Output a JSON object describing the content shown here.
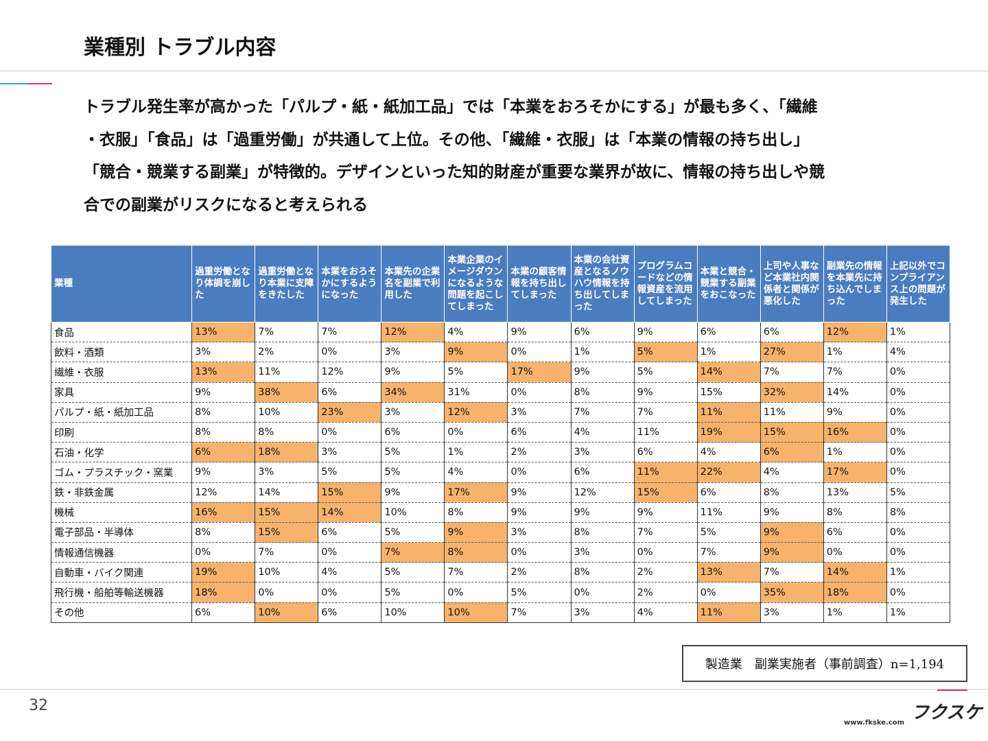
{
  "header": {
    "title": "業種別 トラブル内容"
  },
  "description": {
    "lines": [
      "トラブル発生率が高かった「パルプ・紙・紙加工品」では「本業をおろそかにする」が最も多く、「繊維",
      "・衣服」「食品」は「過重労働」が共通して上位。その他、「繊維・衣服」は「本業の情報の持ち出し」",
      "「競合・競業する副業」が特徴的。デザインといった知的財産が重要な業界が故に、情報の持ち出しや競",
      "合での副業がリスクになると考えられる"
    ]
  },
  "table": {
    "header_color": "#4a7cc0",
    "highlight_color": "#f7b36b",
    "columns": [
      "業種",
      "過重労働となり体調を崩した",
      "過重労働となり本業に支障をきたした",
      "本業をおろそかにするようになった",
      "本業先の企業名を副業で利用した",
      "本業企業のイメージダウンになるような問題を起こしてしまった",
      "本業の顧客情報を持ち出してしまった",
      "本業の会社資産となるノウハウ情報を持ち出してしまった",
      "プログラムコードなどの情報資産を流用してしまった",
      "本業と競合・競業する副業をおこなった",
      "上司や人事など本業社内関係者と関係が悪化した",
      "副業先の情報を本業先に持ち込んでしまった",
      "上記以外でコンプライアンス上の問題が発生した"
    ],
    "rows": [
      {
        "cells": [
          "食品",
          "13%",
          "7%",
          "7%",
          "12%",
          "4%",
          "9%",
          "6%",
          "9%",
          "6%",
          "6%",
          "12%",
          "1%"
        ],
        "highlight": [
          1,
          4,
          11
        ]
      },
      {
        "cells": [
          "飲料・酒類",
          "3%",
          "2%",
          "0%",
          "3%",
          "9%",
          "0%",
          "1%",
          "5%",
          "1%",
          "27%",
          "1%",
          "4%"
        ],
        "highlight": [
          5,
          8,
          10
        ]
      },
      {
        "cells": [
          "繊維・衣服",
          "13%",
          "11%",
          "12%",
          "9%",
          "5%",
          "17%",
          "9%",
          "5%",
          "14%",
          "7%",
          "7%",
          "0%"
        ],
        "highlight": [
          1,
          6,
          9
        ]
      },
      {
        "cells": [
          "家具",
          "9%",
          "38%",
          "6%",
          "34%",
          "31%",
          "0%",
          "8%",
          "9%",
          "15%",
          "32%",
          "14%",
          "0%"
        ],
        "highlight": [
          2,
          4,
          10
        ]
      },
      {
        "cells": [
          "パルプ・紙・紙加工品",
          "8%",
          "10%",
          "23%",
          "3%",
          "12%",
          "3%",
          "7%",
          "7%",
          "11%",
          "11%",
          "9%",
          "0%"
        ],
        "highlight": [
          3,
          5,
          9
        ]
      },
      {
        "cells": [
          "印刷",
          "8%",
          "8%",
          "0%",
          "6%",
          "0%",
          "6%",
          "4%",
          "11%",
          "19%",
          "15%",
          "16%",
          "0%"
        ],
        "highlight": [
          9,
          10,
          11
        ]
      },
      {
        "cells": [
          "石油・化学",
          "6%",
          "18%",
          "3%",
          "5%",
          "1%",
          "2%",
          "3%",
          "6%",
          "4%",
          "6%",
          "1%",
          "0%"
        ],
        "highlight": [
          1,
          2,
          10
        ]
      },
      {
        "cells": [
          "ゴム・プラスチック・窯業",
          "9%",
          "3%",
          "5%",
          "5%",
          "4%",
          "0%",
          "6%",
          "11%",
          "22%",
          "4%",
          "17%",
          "0%"
        ],
        "highlight": [
          8,
          9,
          11
        ]
      },
      {
        "cells": [
          "鉄・非鉄金属",
          "12%",
          "14%",
          "15%",
          "9%",
          "17%",
          "9%",
          "12%",
          "15%",
          "6%",
          "8%",
          "13%",
          "5%"
        ],
        "highlight": [
          3,
          5,
          8
        ]
      },
      {
        "cells": [
          "機械",
          "16%",
          "15%",
          "14%",
          "10%",
          "8%",
          "9%",
          "9%",
          "9%",
          "11%",
          "9%",
          "8%",
          "8%"
        ],
        "highlight": [
          1,
          2,
          3
        ]
      },
      {
        "cells": [
          "電子部品・半導体",
          "8%",
          "15%",
          "6%",
          "5%",
          "9%",
          "3%",
          "8%",
          "7%",
          "5%",
          "9%",
          "6%",
          "0%"
        ],
        "highlight": [
          2,
          5,
          10
        ]
      },
      {
        "cells": [
          "情報通信機器",
          "0%",
          "7%",
          "0%",
          "7%",
          "8%",
          "0%",
          "3%",
          "0%",
          "7%",
          "9%",
          "0%",
          "0%"
        ],
        "highlight": [
          4,
          5,
          10
        ]
      },
      {
        "cells": [
          "自動車・バイク関連",
          "19%",
          "10%",
          "4%",
          "5%",
          "7%",
          "2%",
          "8%",
          "2%",
          "13%",
          "7%",
          "14%",
          "1%"
        ],
        "highlight": [
          1,
          9,
          11
        ]
      },
      {
        "cells": [
          "飛行機・船舶等輸送機器",
          "18%",
          "0%",
          "0%",
          "5%",
          "0%",
          "5%",
          "0%",
          "2%",
          "0%",
          "35%",
          "18%",
          "0%"
        ],
        "highlight": [
          1,
          10,
          11
        ]
      },
      {
        "cells": [
          "その他",
          "6%",
          "10%",
          "6%",
          "10%",
          "10%",
          "7%",
          "3%",
          "4%",
          "11%",
          "3%",
          "1%",
          "1%"
        ],
        "highlight": [
          2,
          5,
          9
        ]
      }
    ]
  },
  "note": "製造業　副業実施者（事前調査）n=1,194",
  "footer": {
    "page_number": "32",
    "logo": "フクスケ",
    "url": "www.fkske.com"
  }
}
